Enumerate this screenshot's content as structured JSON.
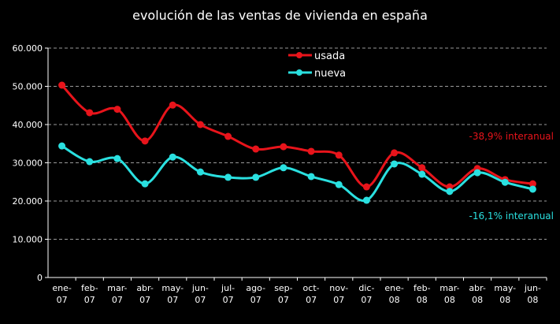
{
  "chart_data": {
    "type": "line",
    "title": "evolución de las ventas de vivienda en españa",
    "categories": [
      "ene-07",
      "feb-07",
      "mar-07",
      "abr-07",
      "may-07",
      "jun-07",
      "jul-07",
      "ago-07",
      "sep-07",
      "oct-07",
      "nov-07",
      "dic-07",
      "ene-08",
      "feb-08",
      "mar-08",
      "abr-08",
      "may-08",
      "jun-08"
    ],
    "ylim": [
      0,
      60000
    ],
    "yticks": [
      "0",
      "10.000",
      "20.000",
      "30.000",
      "40.000",
      "50.000",
      "60.000"
    ],
    "grid": "horizontal dashed",
    "legend": "top-center",
    "series": [
      {
        "name": "usada",
        "color": "#e8141b",
        "values": [
          50300,
          43100,
          44000,
          35700,
          45100,
          40000,
          36900,
          33600,
          34200,
          33000,
          32000,
          23700,
          32600,
          28700,
          23700,
          28500,
          25600,
          24500
        ]
      },
      {
        "name": "nueva",
        "color": "#2ae0e0",
        "values": [
          34400,
          30300,
          31100,
          24500,
          31500,
          27600,
          26200,
          26200,
          28700,
          26400,
          24300,
          20200,
          29700,
          27000,
          22500,
          27400,
          24900,
          23100
        ]
      }
    ],
    "annotations": [
      {
        "text": "-38,9% interanual",
        "color": "#e8141b"
      },
      {
        "text": "-16,1% interanual",
        "color": "#2ae0e0"
      }
    ]
  }
}
